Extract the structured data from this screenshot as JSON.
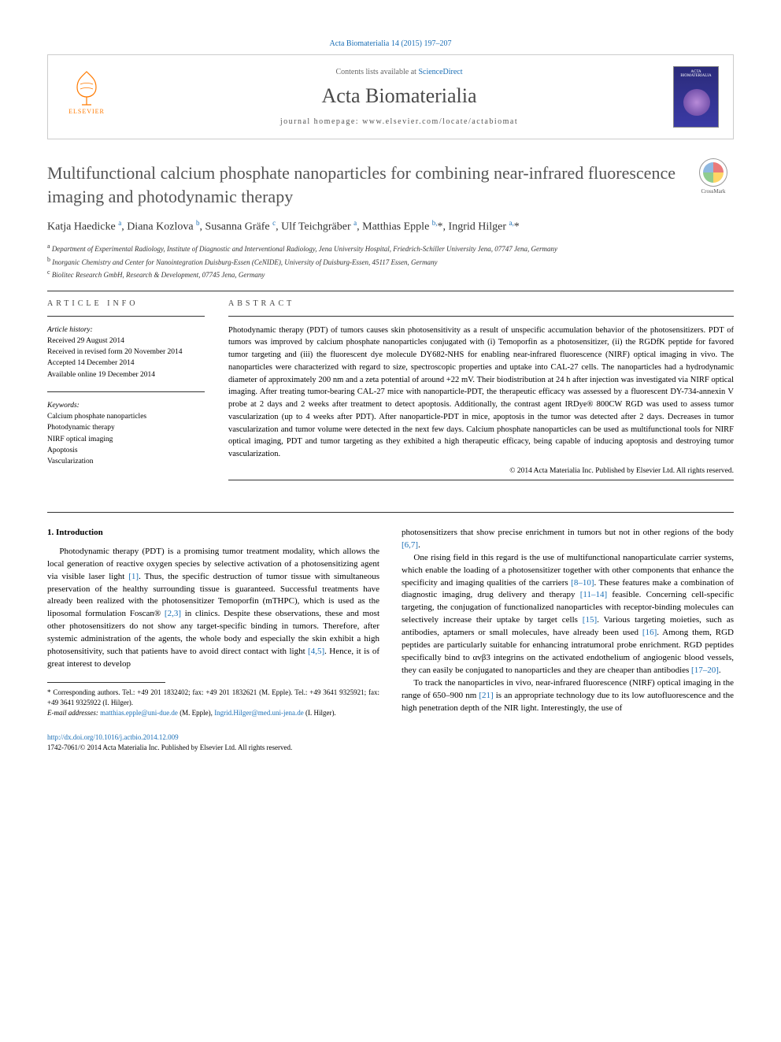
{
  "citation": "Acta Biomaterialia 14 (2015) 197–207",
  "header": {
    "contents_prefix": "Contents lists available at ",
    "contents_link": "ScienceDirect",
    "journal": "Acta Biomaterialia",
    "homepage_label": "journal homepage: ",
    "homepage_url": "www.elsevier.com/locate/actabiomat",
    "publisher_logo_text": "ELSEVIER",
    "cover_title": "ACTA BIOMATERIALIA"
  },
  "crossmark": "CrossMark",
  "title": "Multifunctional calcium phosphate nanoparticles for combining near-infrared fluorescence imaging and photodynamic therapy",
  "authors_html": "Katja Haedicke <sup>a</sup>, Diana Kozlova <sup>b</sup>, Susanna Gräfe <sup>c</sup>, Ulf Teichgräber <sup>a</sup>, Matthias Epple <sup>b,</sup>*, Ingrid Hilger <sup>a,</sup>*",
  "affiliations": [
    {
      "sup": "a",
      "text": "Department of Experimental Radiology, Institute of Diagnostic and Interventional Radiology, Jena University Hospital, Friedrich-Schiller University Jena, 07747 Jena, Germany"
    },
    {
      "sup": "b",
      "text": "Inorganic Chemistry and Center for Nanointegration Duisburg-Essen (CeNIDE), University of Duisburg-Essen, 45117 Essen, Germany"
    },
    {
      "sup": "c",
      "text": "Biolitec Research GmbH, Research & Development, 07745 Jena, Germany"
    }
  ],
  "info_label": "ARTICLE INFO",
  "abstract_label": "ABSTRACT",
  "history_label": "Article history:",
  "history": [
    "Received 29 August 2014",
    "Received in revised form 20 November 2014",
    "Accepted 14 December 2014",
    "Available online 19 December 2014"
  ],
  "keywords_label": "Keywords:",
  "keywords": [
    "Calcium phosphate nanoparticles",
    "Photodynamic therapy",
    "NIRF optical imaging",
    "Apoptosis",
    "Vascularization"
  ],
  "abstract": "Photodynamic therapy (PDT) of tumors causes skin photosensitivity as a result of unspecific accumulation behavior of the photosensitizers. PDT of tumors was improved by calcium phosphate nanoparticles conjugated with (i) Temoporfin as a photosensitizer, (ii) the RGDfK peptide for favored tumor targeting and (iii) the fluorescent dye molecule DY682-NHS for enabling near-infrared fluorescence (NIRF) optical imaging in vivo. The nanoparticles were characterized with regard to size, spectroscopic properties and uptake into CAL-27 cells. The nanoparticles had a hydrodynamic diameter of approximately 200 nm and a zeta potential of around +22 mV. Their biodistribution at 24 h after injection was investigated via NIRF optical imaging. After treating tumor-bearing CAL-27 mice with nanoparticle-PDT, the therapeutic efficacy was assessed by a fluorescent DY-734-annexin V probe at 2 days and 2 weeks after treatment to detect apoptosis. Additionally, the contrast agent IRDye® 800CW RGD was used to assess tumor vascularization (up to 4 weeks after PDT). After nanoparticle-PDT in mice, apoptosis in the tumor was detected after 2 days. Decreases in tumor vascularization and tumor volume were detected in the next few days. Calcium phosphate nanoparticles can be used as multifunctional tools for NIRF optical imaging, PDT and tumor targeting as they exhibited a high therapeutic efficacy, being capable of inducing apoptosis and destroying tumor vascularization.",
  "copyright": "© 2014 Acta Materialia Inc. Published by Elsevier Ltd. All rights reserved.",
  "intro_heading": "1. Introduction",
  "intro_paras": [
    "Photodynamic therapy (PDT) is a promising tumor treatment modality, which allows the local generation of reactive oxygen species by selective activation of a photosensitizing agent via visible laser light [1]. Thus, the specific destruction of tumor tissue with simultaneous preservation of the healthy surrounding tissue is guaranteed. Successful treatments have already been realized with the photosensitizer Temoporfin (mTHPC), which is used as the liposomal formulation Foscan® [2,3] in clinics. Despite these observations, these and most other photosensitizers do not show any target-specific binding in tumors. Therefore, after systemic administration of the agents, the whole body and especially the skin exhibit a high photosensitivity, such that patients have to avoid direct contact with light [4,5]. Hence, it is of great interest to develop",
    "photosensitizers that show precise enrichment in tumors but not in other regions of the body [6,7].",
    "One rising field in this regard is the use of multifunctional nanoparticulate carrier systems, which enable the loading of a photosensitizer together with other components that enhance the specificity and imaging qualities of the carriers [8–10]. These features make a combination of diagnostic imaging, drug delivery and therapy [11–14] feasible. Concerning cell-specific targeting, the conjugation of functionalized nanoparticles with receptor-binding molecules can selectively increase their uptake by target cells [15]. Various targeting moieties, such as antibodies, aptamers or small molecules, have already been used [16]. Among them, RGD peptides are particularly suitable for enhancing intratumoral probe enrichment. RGD peptides specifically bind to αvβ3 integrins on the activated endothelium of angiogenic blood vessels, they can easily be conjugated to nanoparticles and they are cheaper than antibodies [17–20].",
    "To track the nanoparticles in vivo, near-infrared fluorescence (NIRF) optical imaging in the range of 650–900 nm [21] is an appropriate technology due to its low autofluorescence and the high penetration depth of the NIR light. Interestingly, the use of"
  ],
  "refs": {
    "r1": "[1]",
    "r23": "[2,3]",
    "r45": "[4,5]",
    "r67": "[6,7]",
    "r810": "[8–10]",
    "r1114": "[11–14]",
    "r15": "[15]",
    "r16": "[16]",
    "r1720": "[17–20]",
    "r21": "[21]"
  },
  "corresponding": {
    "star": "* Corresponding authors. Tel.: +49 201 1832402; fax: +49 201 1832621 (M. Epple). Tel.: +49 3641 9325921; fax: +49 3641 9325922 (I. Hilger).",
    "email_label": "E-mail addresses: ",
    "email1": "matthias.epple@uni-due.de",
    "email1_who": " (M. Epple), ",
    "email2": "Ingrid.Hilger@med.uni-jena.de",
    "email2_who": " (I. Hilger)."
  },
  "footer": {
    "doi": "http://dx.doi.org/10.1016/j.actbio.2014.12.009",
    "issn_line": "1742-7061/© 2014 Acta Materialia Inc. Published by Elsevier Ltd. All rights reserved."
  }
}
